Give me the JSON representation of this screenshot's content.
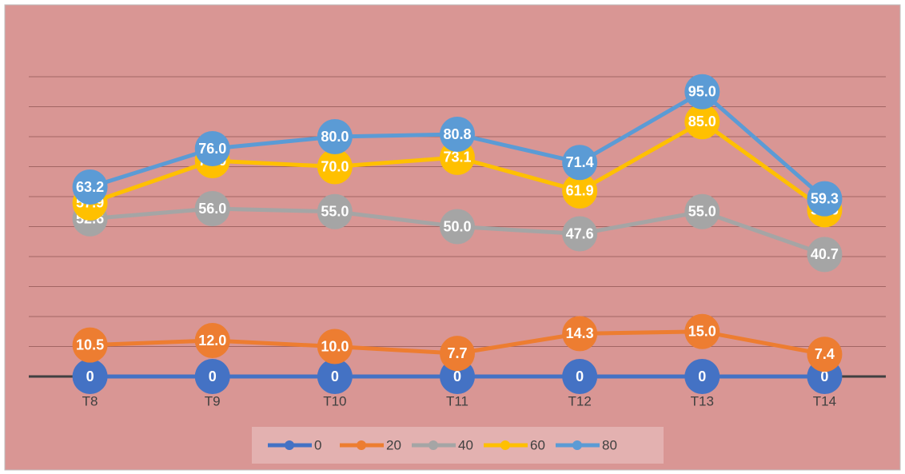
{
  "chart_data": {
    "type": "line",
    "categories": [
      "T8",
      "T9",
      "T10",
      "T11",
      "T12",
      "T13",
      "T14"
    ],
    "series": [
      {
        "name": "0",
        "color": "#4472c4",
        "values": [
          0,
          0,
          0,
          0,
          0,
          0,
          0
        ]
      },
      {
        "name": "20",
        "color": "#ed7d31",
        "values": [
          10.5,
          12.0,
          10.0,
          7.7,
          14.3,
          15.0,
          7.4
        ],
        "value_labels": [
          "10.5",
          "12.0",
          "10.0",
          "7.7",
          "14.3",
          "15.0",
          "7.4"
        ]
      },
      {
        "name": "40",
        "color": "#a5a5a5",
        "values": [
          52.6,
          56.0,
          55.0,
          50.0,
          47.6,
          55.0,
          40.7
        ],
        "value_labels": [
          "52.6",
          "56.0",
          "55.0",
          "50.0",
          "47.6",
          "55.0",
          "40.7"
        ]
      },
      {
        "name": "60",
        "color": "#ffc000",
        "values": [
          57.9,
          72.0,
          70.0,
          73.1,
          61.9,
          85.0,
          55.6
        ],
        "value_labels": [
          "57.9",
          "72.0",
          "70.0",
          "73.1",
          "61.9",
          "85.0",
          "55.6"
        ]
      },
      {
        "name": "80",
        "color": "#5b9bd5",
        "values": [
          63.2,
          76.0,
          80.0,
          80.8,
          71.4,
          95.0,
          59.3
        ],
        "value_labels": [
          "63.2",
          "76.0",
          "80.0",
          "80.8",
          "71.4",
          "95.0",
          "59.3"
        ]
      }
    ],
    "ylim": [
      0,
      100
    ],
    "yticks": [
      0,
      10,
      20,
      30,
      40,
      50,
      60,
      70,
      80,
      90,
      100
    ],
    "grid": true,
    "legend": "bottom"
  }
}
